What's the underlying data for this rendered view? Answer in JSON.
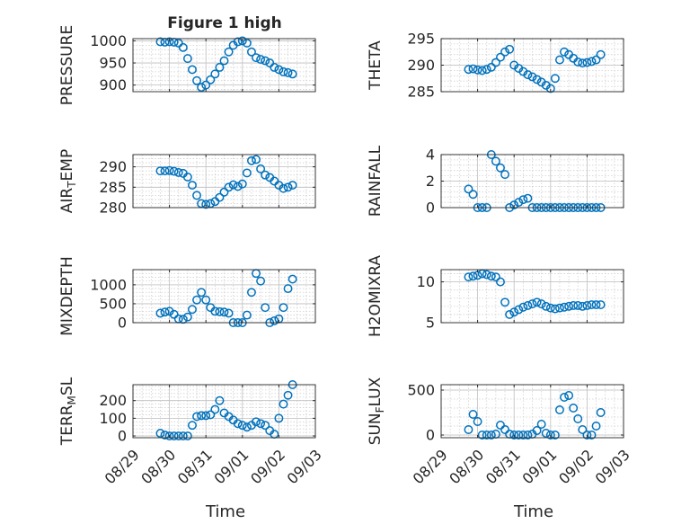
{
  "figure_title": "Figure 1 high",
  "xlabel": "Time",
  "x_ticks": [
    "08/29",
    "08/30",
    "08/31",
    "09/01",
    "09/02",
    "09/03"
  ],
  "colors": {
    "marker": "#0072BD",
    "axis": "#262626",
    "grid": "#D0D0D0",
    "background": "#FFFFFF"
  },
  "chart_data": [
    {
      "type": "scatter",
      "id": "pressure",
      "ylabel": "PRESSURE",
      "yticks": [
        900,
        950,
        1000
      ],
      "ylim": [
        885,
        1005
      ],
      "xlim": [
        "08/29",
        "09/03"
      ],
      "grid": "on",
      "x": [
        "08/29 18:00",
        "08/29 21:00",
        "08/30 00:00",
        "08/30 03:00",
        "08/30 06:00",
        "08/30 09:00",
        "08/30 12:00",
        "08/30 15:00",
        "08/30 18:00",
        "08/30 21:00",
        "08/31 00:00",
        "08/31 03:00",
        "08/31 06:00",
        "08/31 09:00",
        "08/31 12:00",
        "08/31 15:00",
        "08/31 18:00",
        "08/31 21:00",
        "09/01 00:00",
        "09/01 03:00",
        "09/01 06:00",
        "09/01 09:00",
        "09/01 12:00",
        "09/01 15:00",
        "09/01 18:00",
        "09/01 21:00",
        "09/02 00:00",
        "09/02 03:00",
        "09/02 06:00",
        "09/02 09:00"
      ],
      "y": [
        998,
        997,
        998,
        997,
        995,
        985,
        960,
        935,
        910,
        895,
        900,
        912,
        925,
        940,
        955,
        975,
        990,
        998,
        1000,
        995,
        975,
        962,
        958,
        955,
        950,
        940,
        935,
        930,
        928,
        925
      ]
    },
    {
      "type": "scatter",
      "id": "theta",
      "ylabel": "THETA",
      "yticks": [
        285,
        290,
        295
      ],
      "ylim": [
        285,
        295
      ],
      "xlim": [
        "08/29",
        "09/03"
      ],
      "grid": "on",
      "x": [
        "08/29 18:00",
        "08/29 21:00",
        "08/30 00:00",
        "08/30 03:00",
        "08/30 06:00",
        "08/30 09:00",
        "08/30 12:00",
        "08/30 15:00",
        "08/30 18:00",
        "08/30 21:00",
        "08/31 00:00",
        "08/31 03:00",
        "08/31 06:00",
        "08/31 09:00",
        "08/31 12:00",
        "08/31 15:00",
        "08/31 18:00",
        "08/31 21:00",
        "09/01 00:00",
        "09/01 03:00",
        "09/01 06:00",
        "09/01 09:00",
        "09/01 12:00",
        "09/01 15:00",
        "09/01 18:00",
        "09/01 21:00",
        "09/02 00:00",
        "09/02 03:00",
        "09/02 06:00",
        "09/02 09:00"
      ],
      "y": [
        289.2,
        289.3,
        289.1,
        289.0,
        289.2,
        289.6,
        290.5,
        291.5,
        292.5,
        293.0,
        290.0,
        289.4,
        288.8,
        288.2,
        287.8,
        287.3,
        286.8,
        286.2,
        285.6,
        287.5,
        291.0,
        292.5,
        292.0,
        291.3,
        290.6,
        290.4,
        290.5,
        290.7,
        291.0,
        292.0
      ]
    },
    {
      "type": "scatter",
      "id": "air-temp",
      "ylabel": "AIR_TEMP",
      "yticks": [
        280,
        285,
        290
      ],
      "ylim": [
        280,
        293
      ],
      "xlim": [
        "08/29",
        "09/03"
      ],
      "grid": "on",
      "x": [
        "08/29 18:00",
        "08/29 21:00",
        "08/30 00:00",
        "08/30 03:00",
        "08/30 06:00",
        "08/30 09:00",
        "08/30 12:00",
        "08/30 15:00",
        "08/30 18:00",
        "08/30 21:00",
        "08/31 00:00",
        "08/31 03:00",
        "08/31 06:00",
        "08/31 09:00",
        "08/31 12:00",
        "08/31 15:00",
        "08/31 18:00",
        "08/31 21:00",
        "09/01 00:00",
        "09/01 03:00",
        "09/01 06:00",
        "09/01 09:00",
        "09/01 12:00",
        "09/01 15:00",
        "09/01 18:00",
        "09/01 21:00",
        "09/02 00:00",
        "09/02 03:00",
        "09/02 06:00",
        "09/02 09:00"
      ],
      "y": [
        289.0,
        289.0,
        289.1,
        288.9,
        288.6,
        288.4,
        287.5,
        285.5,
        283.0,
        281.0,
        280.8,
        281.0,
        281.5,
        282.5,
        283.8,
        285.0,
        285.6,
        285.2,
        285.8,
        288.5,
        291.5,
        291.8,
        289.5,
        288.0,
        287.4,
        286.5,
        285.5,
        284.7,
        285.0,
        285.5
      ]
    },
    {
      "type": "scatter",
      "id": "rainfall",
      "ylabel": "RAINFALL",
      "yticks": [
        0,
        2,
        4
      ],
      "ylim": [
        0,
        4
      ],
      "xlim": [
        "08/29",
        "09/03"
      ],
      "grid": "on",
      "x": [
        "08/29 18:00",
        "08/29 21:00",
        "08/30 00:00",
        "08/30 03:00",
        "08/30 06:00",
        "08/30 09:00",
        "08/30 12:00",
        "08/30 15:00",
        "08/30 18:00",
        "08/30 21:00",
        "08/31 00:00",
        "08/31 03:00",
        "08/31 06:00",
        "08/31 09:00",
        "08/31 12:00",
        "08/31 15:00",
        "08/31 18:00",
        "08/31 21:00",
        "09/01 00:00",
        "09/01 03:00",
        "09/01 06:00",
        "09/01 09:00",
        "09/01 12:00",
        "09/01 15:00",
        "09/01 18:00",
        "09/01 21:00",
        "09/02 00:00",
        "09/02 03:00",
        "09/02 06:00",
        "09/02 09:00"
      ],
      "y": [
        1.4,
        1.0,
        0.0,
        0.0,
        0.0,
        4.0,
        3.5,
        3.0,
        2.5,
        0.0,
        0.2,
        0.4,
        0.6,
        0.7,
        0.0,
        0.0,
        0.0,
        0.0,
        0.0,
        0.0,
        0.0,
        0.0,
        0.0,
        0.0,
        0.0,
        0.0,
        0.0,
        0.0,
        0.0,
        0.0
      ]
    },
    {
      "type": "scatter",
      "id": "mixdepth",
      "ylabel": "MIXDEPTH",
      "yticks": [
        0,
        500,
        1000
      ],
      "ylim": [
        0,
        1400
      ],
      "xlim": [
        "08/29",
        "09/03"
      ],
      "grid": "on",
      "x": [
        "08/29 18:00",
        "08/29 21:00",
        "08/30 00:00",
        "08/30 03:00",
        "08/30 06:00",
        "08/30 09:00",
        "08/30 12:00",
        "08/30 15:00",
        "08/30 18:00",
        "08/30 21:00",
        "08/31 00:00",
        "08/31 03:00",
        "08/31 06:00",
        "08/31 09:00",
        "08/31 12:00",
        "08/31 15:00",
        "08/31 18:00",
        "08/31 21:00",
        "09/01 00:00",
        "09/01 03:00",
        "09/01 06:00",
        "09/01 09:00",
        "09/01 12:00",
        "09/01 15:00",
        "09/01 18:00",
        "09/01 21:00",
        "09/02 00:00",
        "09/02 03:00",
        "09/02 06:00",
        "09/02 09:00"
      ],
      "y": [
        250,
        280,
        300,
        220,
        100,
        90,
        150,
        350,
        600,
        800,
        600,
        400,
        300,
        290,
        280,
        250,
        0,
        0,
        0,
        200,
        800,
        1300,
        1100,
        400,
        0,
        50,
        100,
        400,
        900,
        1150
      ]
    },
    {
      "type": "scatter",
      "id": "h2omixra",
      "ylabel": "H2OMIXRA",
      "yticks": [
        5,
        10
      ],
      "ylim": [
        5,
        11.5
      ],
      "xlim": [
        "08/29",
        "09/03"
      ],
      "grid": "on",
      "x": [
        "08/29 18:00",
        "08/29 21:00",
        "08/30 00:00",
        "08/30 03:00",
        "08/30 06:00",
        "08/30 09:00",
        "08/30 12:00",
        "08/30 15:00",
        "08/30 18:00",
        "08/30 21:00",
        "08/31 00:00",
        "08/31 03:00",
        "08/31 06:00",
        "08/31 09:00",
        "08/31 12:00",
        "08/31 15:00",
        "08/31 18:00",
        "08/31 21:00",
        "09/01 00:00",
        "09/01 03:00",
        "09/01 06:00",
        "09/01 09:00",
        "09/01 12:00",
        "09/01 15:00",
        "09/01 18:00",
        "09/01 21:00",
        "09/02 00:00",
        "09/02 03:00",
        "09/02 06:00",
        "09/02 09:00"
      ],
      "y": [
        10.6,
        10.7,
        10.8,
        11.0,
        10.9,
        10.7,
        10.6,
        10.0,
        7.5,
        6.0,
        6.3,
        6.6,
        6.9,
        7.1,
        7.3,
        7.5,
        7.3,
        7.0,
        6.8,
        6.7,
        6.8,
        6.9,
        7.0,
        7.1,
        7.1,
        7.0,
        7.1,
        7.2,
        7.2,
        7.2
      ]
    },
    {
      "type": "scatter",
      "id": "terr-msl",
      "ylabel": "TERR_MSL",
      "yticks": [
        0,
        100,
        200
      ],
      "ylim": [
        -10,
        290
      ],
      "xlim": [
        "08/29",
        "09/03"
      ],
      "grid": "on",
      "x": [
        "08/29 18:00",
        "08/29 21:00",
        "08/30 00:00",
        "08/30 03:00",
        "08/30 06:00",
        "08/30 09:00",
        "08/30 12:00",
        "08/30 15:00",
        "08/30 18:00",
        "08/30 21:00",
        "08/31 00:00",
        "08/31 03:00",
        "08/31 06:00",
        "08/31 09:00",
        "08/31 12:00",
        "08/31 15:00",
        "08/31 18:00",
        "08/31 21:00",
        "09/01 00:00",
        "09/01 03:00",
        "09/01 06:00",
        "09/01 09:00",
        "09/01 12:00",
        "09/01 15:00",
        "09/01 18:00",
        "09/01 21:00",
        "09/02 00:00",
        "09/02 03:00",
        "09/02 06:00",
        "09/02 09:00"
      ],
      "y": [
        15,
        5,
        0,
        0,
        0,
        0,
        0,
        60,
        110,
        115,
        115,
        120,
        150,
        200,
        130,
        110,
        90,
        70,
        60,
        50,
        60,
        80,
        70,
        60,
        30,
        10,
        100,
        180,
        230,
        290
      ]
    },
    {
      "type": "scatter",
      "id": "sun-flux",
      "ylabel": "SUN_FLUX",
      "yticks": [
        0,
        500
      ],
      "ylim": [
        -30,
        560
      ],
      "xlim": [
        "08/29",
        "09/03"
      ],
      "grid": "on",
      "x": [
        "08/29 18:00",
        "08/29 21:00",
        "08/30 00:00",
        "08/30 03:00",
        "08/30 06:00",
        "08/30 09:00",
        "08/30 12:00",
        "08/30 15:00",
        "08/30 18:00",
        "08/30 21:00",
        "08/31 00:00",
        "08/31 03:00",
        "08/31 06:00",
        "08/31 09:00",
        "08/31 12:00",
        "08/31 15:00",
        "08/31 18:00",
        "08/31 21:00",
        "09/01 00:00",
        "09/01 03:00",
        "09/01 06:00",
        "09/01 09:00",
        "09/01 12:00",
        "09/01 15:00",
        "09/01 18:00",
        "09/01 21:00",
        "09/02 00:00",
        "09/02 03:00",
        "09/02 06:00",
        "09/02 09:00"
      ],
      "y": [
        60,
        230,
        150,
        0,
        0,
        0,
        10,
        110,
        60,
        10,
        0,
        0,
        0,
        0,
        10,
        50,
        120,
        20,
        0,
        0,
        280,
        420,
        440,
        300,
        180,
        60,
        0,
        0,
        100,
        250
      ]
    }
  ]
}
